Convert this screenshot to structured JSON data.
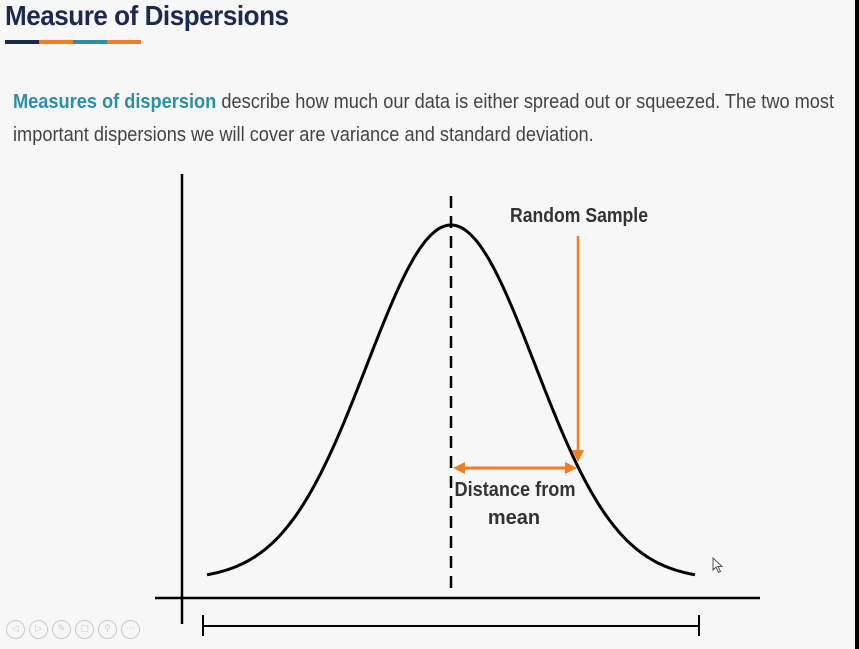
{
  "slide": {
    "title": "Measure of Dispersions",
    "title_bar_colors": [
      "#1b2a4e",
      "#f47c20",
      "#2b8fa6",
      "#f47c20"
    ],
    "intro": {
      "highlight": "Measures of dispersion",
      "rest": " describe how much our data is either spread out or squeezed. The two most important dispersions we will cover are variance and standard deviation."
    },
    "diagram": {
      "random_sample_label": "Random Sample",
      "distance_label_line1": "Distance from",
      "distance_label_line2": "mean",
      "accent_color": "#f47c20"
    }
  },
  "player_controls": {
    "icons": [
      "previous-icon",
      "play-icon",
      "pen-icon",
      "copy-icon",
      "zoom-icon",
      "more-icon"
    ],
    "glyphs": [
      "◁",
      "▷",
      "✎",
      "▢",
      "⚲",
      "···"
    ]
  }
}
